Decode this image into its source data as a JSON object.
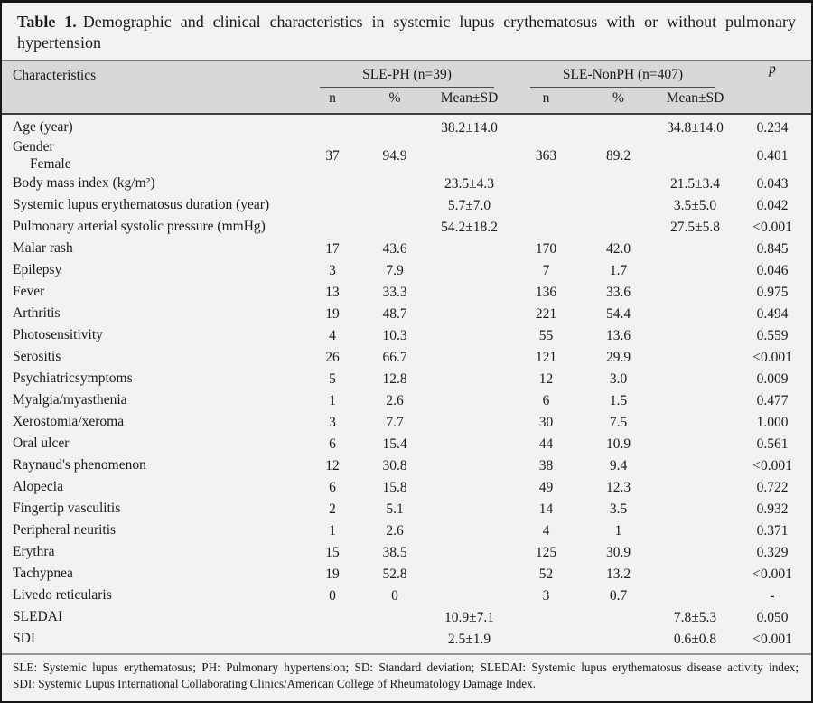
{
  "colors": {
    "page_bg": "#f2f2f0",
    "header_band": "#d8d8d8",
    "frame": "#161616",
    "text": "#1a1a1a"
  },
  "title": {
    "label": "Table 1.",
    "line1_rest": "Demographic and clinical characteristics in systemic lupus erythematosus with or without pulmonary",
    "line2": "hypertension"
  },
  "table": {
    "characteristics_header": "Characteristics",
    "groups": [
      {
        "label": "SLE-PH (n=39)"
      },
      {
        "label": "SLE-NonPH (n=407)"
      }
    ],
    "subheaders": [
      "n",
      "%",
      "Mean±SD",
      "n",
      "%",
      "Mean±SD"
    ],
    "p_header": "p",
    "rows": [
      {
        "label": "Age (year)",
        "sub": "",
        "n1": "",
        "pct1": "",
        "mean1": "38.2±14.0",
        "n2": "",
        "pct2": "",
        "mean2": "34.8±14.0",
        "p": "0.234"
      },
      {
        "label": "Gender",
        "sub": "Female",
        "n1": "37",
        "pct1": "94.9",
        "mean1": "",
        "n2": "363",
        "pct2": "89.2",
        "mean2": "",
        "p": "0.401"
      },
      {
        "label": "Body mass index (kg/m²)",
        "sub": "",
        "n1": "",
        "pct1": "",
        "mean1": "23.5±4.3",
        "n2": "",
        "pct2": "",
        "mean2": "21.5±3.4",
        "p": "0.043"
      },
      {
        "label": "Systemic lupus erythematosus duration (year)",
        "sub": "",
        "n1": "",
        "pct1": "",
        "mean1": "5.7±7.0",
        "n2": "",
        "pct2": "",
        "mean2": "3.5±5.0",
        "p": "0.042"
      },
      {
        "label": "Pulmonary arterial systolic pressure (mmHg)",
        "sub": "",
        "n1": "",
        "pct1": "",
        "mean1": "54.2±18.2",
        "n2": "",
        "pct2": "",
        "mean2": "27.5±5.8",
        "p": "<0.001"
      },
      {
        "label": "Malar rash",
        "sub": "",
        "n1": "17",
        "pct1": "43.6",
        "mean1": "",
        "n2": "170",
        "pct2": "42.0",
        "mean2": "",
        "p": "0.845"
      },
      {
        "label": "Epilepsy",
        "sub": "",
        "n1": "3",
        "pct1": "7.9",
        "mean1": "",
        "n2": "7",
        "pct2": "1.7",
        "mean2": "",
        "p": "0.046"
      },
      {
        "label": "Fever",
        "sub": "",
        "n1": "13",
        "pct1": "33.3",
        "mean1": "",
        "n2": "136",
        "pct2": "33.6",
        "mean2": "",
        "p": "0.975"
      },
      {
        "label": "Arthritis",
        "sub": "",
        "n1": "19",
        "pct1": "48.7",
        "mean1": "",
        "n2": "221",
        "pct2": "54.4",
        "mean2": "",
        "p": "0.494"
      },
      {
        "label": "Photosensitivity",
        "sub": "",
        "n1": "4",
        "pct1": "10.3",
        "mean1": "",
        "n2": "55",
        "pct2": "13.6",
        "mean2": "",
        "p": "0.559"
      },
      {
        "label": "Serositis",
        "sub": "",
        "n1": "26",
        "pct1": "66.7",
        "mean1": "",
        "n2": "121",
        "pct2": "29.9",
        "mean2": "",
        "p": "<0.001"
      },
      {
        "label": "Psychiatricsymptoms",
        "sub": "",
        "n1": "5",
        "pct1": "12.8",
        "mean1": "",
        "n2": "12",
        "pct2": "3.0",
        "mean2": "",
        "p": "0.009"
      },
      {
        "label": "Myalgia/myasthenia",
        "sub": "",
        "n1": "1",
        "pct1": "2.6",
        "mean1": "",
        "n2": "6",
        "pct2": "1.5",
        "mean2": "",
        "p": "0.477"
      },
      {
        "label": "Xerostomia/xeroma",
        "sub": "",
        "n1": "3",
        "pct1": "7.7",
        "mean1": "",
        "n2": "30",
        "pct2": "7.5",
        "mean2": "",
        "p": "1.000"
      },
      {
        "label": "Oral ulcer",
        "sub": "",
        "n1": "6",
        "pct1": "15.4",
        "mean1": "",
        "n2": "44",
        "pct2": "10.9",
        "mean2": "",
        "p": "0.561"
      },
      {
        "label": "Raynaud's phenomenon",
        "sub": "",
        "n1": "12",
        "pct1": "30.8",
        "mean1": "",
        "n2": "38",
        "pct2": "9.4",
        "mean2": "",
        "p": "<0.001"
      },
      {
        "label": "Alopecia",
        "sub": "",
        "n1": "6",
        "pct1": "15.8",
        "mean1": "",
        "n2": "49",
        "pct2": "12.3",
        "mean2": "",
        "p": "0.722"
      },
      {
        "label": "Fingertip vasculitis",
        "sub": "",
        "n1": "2",
        "pct1": "5.1",
        "mean1": "",
        "n2": "14",
        "pct2": "3.5",
        "mean2": "",
        "p": "0.932"
      },
      {
        "label": "Peripheral neuritis",
        "sub": "",
        "n1": "1",
        "pct1": "2.6",
        "mean1": "",
        "n2": "4",
        "pct2": "1",
        "mean2": "",
        "p": "0.371"
      },
      {
        "label": "Erythra",
        "sub": "",
        "n1": "15",
        "pct1": "38.5",
        "mean1": "",
        "n2": "125",
        "pct2": "30.9",
        "mean2": "",
        "p": "0.329"
      },
      {
        "label": "Tachypnea",
        "sub": "",
        "n1": "19",
        "pct1": "52.8",
        "mean1": "",
        "n2": "52",
        "pct2": "13.2",
        "mean2": "",
        "p": "<0.001"
      },
      {
        "label": "Livedo reticularis",
        "sub": "",
        "n1": "0",
        "pct1": "0",
        "mean1": "",
        "n2": "3",
        "pct2": "0.7",
        "mean2": "",
        "p": "-"
      },
      {
        "label": "SLEDAI",
        "sub": "",
        "n1": "",
        "pct1": "",
        "mean1": "10.9±7.1",
        "n2": "",
        "pct2": "",
        "mean2": "7.8±5.3",
        "p": "0.050"
      },
      {
        "label": "SDI",
        "sub": "",
        "n1": "",
        "pct1": "",
        "mean1": "2.5±1.9",
        "n2": "",
        "pct2": "",
        "mean2": "0.6±0.8",
        "p": "<0.001"
      }
    ]
  },
  "footnote": {
    "line1": "SLE: Systemic lupus erythematosus; PH: Pulmonary hypertension; SD: Standard deviation; SLEDAI: Systemic lupus erythematosus disease activity index;",
    "line2": "SDI: Systemic Lupus International Collaborating Clinics/American College of Rheumatology Damage Index."
  }
}
